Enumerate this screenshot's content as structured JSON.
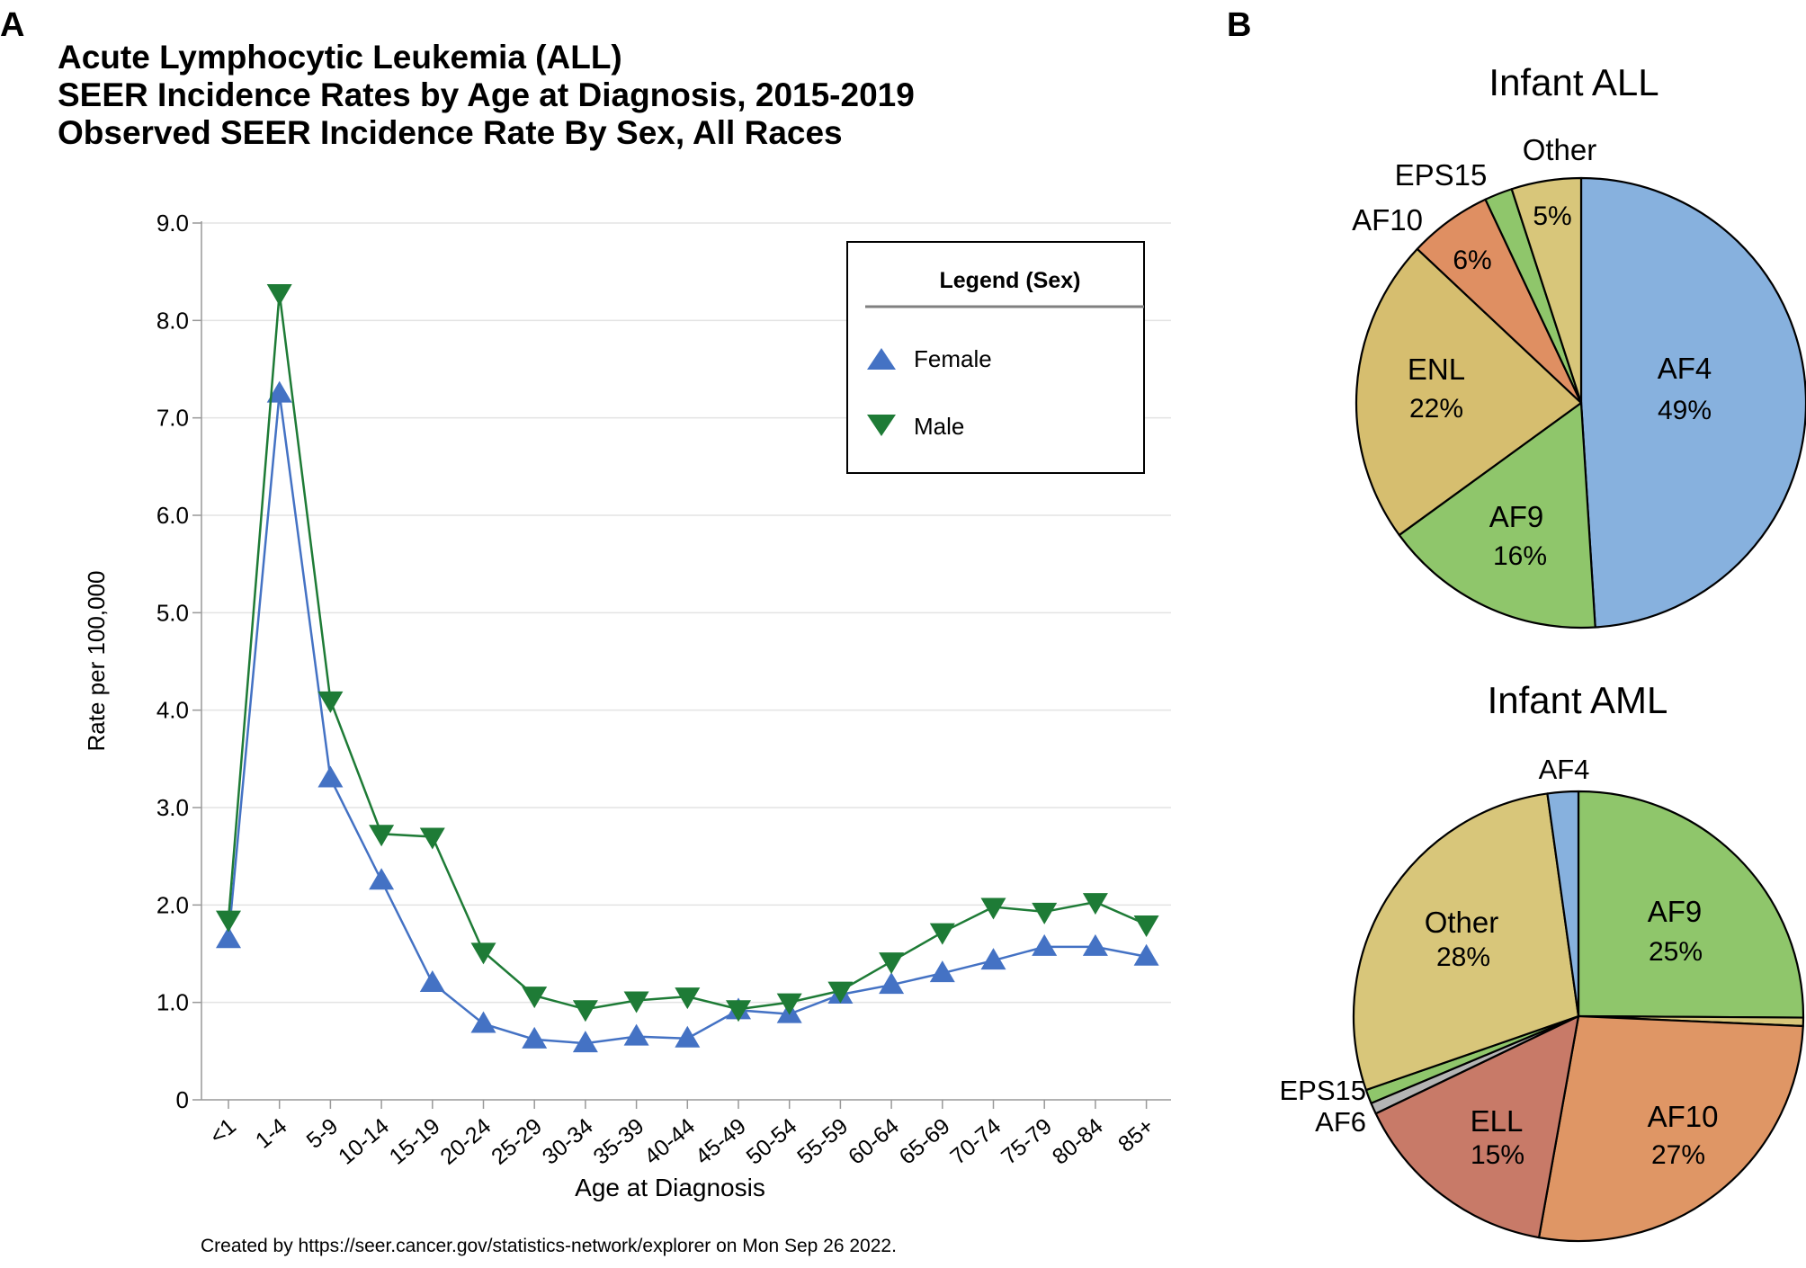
{
  "panel_a_label": "A",
  "panel_b_label": "B",
  "footer": "Created by https://seer.cancer.gov/statistics-network/explorer on Mon Sep 26 2022.",
  "chart_data": [
    {
      "type": "line",
      "title": [
        "Acute Lymphocytic Leukemia (ALL)",
        "SEER Incidence Rates by Age at Diagnosis, 2015-2019",
        "Observed SEER Incidence Rate By Sex, All Races"
      ],
      "xlabel": "Age at Diagnosis",
      "ylabel": "Rate per 100,000",
      "ylim": [
        0,
        9
      ],
      "yticks": [
        "0",
        "1.0",
        "2.0",
        "3.0",
        "4.0",
        "5.0",
        "6.0",
        "7.0",
        "8.0",
        "9.0"
      ],
      "grid": true,
      "categories": [
        "<1",
        "1-4",
        "5-9",
        "10-14",
        "15-19",
        "20-24",
        "25-29",
        "30-34",
        "35-39",
        "40-44",
        "45-49",
        "50-54",
        "55-59",
        "60-64",
        "65-69",
        "70-74",
        "75-79",
        "80-84",
        "85+"
      ],
      "legend": {
        "title": "Legend (Sex)",
        "placement": "top-right",
        "entries": [
          "Female",
          "Male"
        ]
      },
      "series": [
        {
          "name": "Female",
          "marker": "triangle-up",
          "color": "#4472C4",
          "values": [
            1.65,
            7.25,
            3.3,
            2.25,
            1.2,
            0.78,
            0.62,
            0.58,
            0.65,
            0.63,
            0.92,
            0.88,
            1.08,
            1.18,
            1.3,
            1.43,
            1.57,
            1.57,
            1.47
          ]
        },
        {
          "name": "Male",
          "marker": "triangle-down",
          "color": "#1E7B36",
          "values": [
            1.85,
            8.28,
            4.1,
            2.73,
            2.7,
            1.52,
            1.07,
            0.93,
            1.02,
            1.06,
            0.93,
            1.0,
            1.12,
            1.42,
            1.72,
            1.98,
            1.93,
            2.03,
            1.8
          ]
        }
      ]
    },
    {
      "type": "pie",
      "title": "Infant ALL",
      "slices": [
        {
          "label": "AF4",
          "pct_label": "49%",
          "value": 49,
          "color": "#87B1DE"
        },
        {
          "label": "AF9",
          "pct_label": "16%",
          "value": 16,
          "color": "#8FC66B"
        },
        {
          "label": "ENL",
          "pct_label": "22%",
          "value": 22,
          "color": "#D6BE6F"
        },
        {
          "label": "AF10",
          "pct_label": "6%",
          "value": 6,
          "color": "#DF8F62"
        },
        {
          "label": "EPS15",
          "pct_label": "",
          "value": 2,
          "color": "#8FC66B"
        },
        {
          "label": "Other",
          "pct_label": "5%",
          "value": 5,
          "color": "#D8C67A"
        }
      ]
    },
    {
      "type": "pie",
      "title": "Infant AML",
      "slices": [
        {
          "label": "AF9",
          "pct_label": "25%",
          "value": 25,
          "color": "#8FC66B"
        },
        {
          "label": "",
          "pct_label": "",
          "value": 0.6,
          "color": "#D8C67A"
        },
        {
          "label": "AF10",
          "pct_label": "27%",
          "value": 27,
          "color": "#DF9665"
        },
        {
          "label": "ELL",
          "pct_label": "15%",
          "value": 15,
          "color": "#C87A68"
        },
        {
          "label": "AF6",
          "pct_label": "",
          "value": 0.8,
          "color": "#B4B4B4"
        },
        {
          "label": "EPS15",
          "pct_label": "",
          "value": 1.0,
          "color": "#8FC66B"
        },
        {
          "label": "Other",
          "pct_label": "28%",
          "value": 28,
          "color": "#D8C67A"
        },
        {
          "label": "AF4",
          "pct_label": "",
          "value": 2.2,
          "color": "#87B1DE"
        }
      ]
    }
  ]
}
